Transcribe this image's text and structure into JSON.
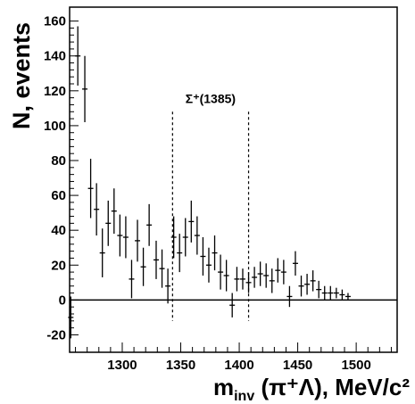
{
  "chart_data": {
    "type": "scatter",
    "title": "",
    "xlabel": {
      "main": "m",
      "sub": "inv",
      "tail": " (π⁺Λ), MeV/c²"
    },
    "ylabel": "N, events",
    "xlim": [
      1255,
      1535
    ],
    "ylim": [
      -30,
      168
    ],
    "x_ticks": [
      1300,
      1350,
      1400,
      1450,
      1500
    ],
    "y_ticks": [
      -20,
      0,
      20,
      40,
      60,
      80,
      100,
      120,
      140,
      160
    ],
    "zero_line": 0,
    "region_lines": [
      1343,
      1408
    ],
    "annotation": "Σ⁺(1385)",
    "points": [
      {
        "x": 1256,
        "y": -10,
        "err": 12
      },
      {
        "x": 1262,
        "y": 140,
        "err": 17
      },
      {
        "x": 1268,
        "y": 121,
        "err": 19
      },
      {
        "x": 1273,
        "y": 64,
        "err": 17
      },
      {
        "x": 1278,
        "y": 52,
        "err": 15
      },
      {
        "x": 1283,
        "y": 27,
        "err": 14
      },
      {
        "x": 1288,
        "y": 44,
        "err": 13
      },
      {
        "x": 1293,
        "y": 51,
        "err": 13
      },
      {
        "x": 1298,
        "y": 37,
        "err": 12
      },
      {
        "x": 1303,
        "y": 36,
        "err": 12
      },
      {
        "x": 1308,
        "y": 12,
        "err": 11
      },
      {
        "x": 1313,
        "y": 34,
        "err": 12
      },
      {
        "x": 1318,
        "y": 19,
        "err": 11
      },
      {
        "x": 1323,
        "y": 43,
        "err": 12
      },
      {
        "x": 1329,
        "y": 23,
        "err": 11
      },
      {
        "x": 1334,
        "y": 18,
        "err": 11
      },
      {
        "x": 1339,
        "y": 8,
        "err": 10
      },
      {
        "x": 1344,
        "y": 36,
        "err": 12
      },
      {
        "x": 1349,
        "y": 27,
        "err": 11
      },
      {
        "x": 1354,
        "y": 36,
        "err": 11
      },
      {
        "x": 1359,
        "y": 45,
        "err": 12
      },
      {
        "x": 1364,
        "y": 37,
        "err": 11
      },
      {
        "x": 1369,
        "y": 25,
        "err": 11
      },
      {
        "x": 1374,
        "y": 20,
        "err": 10
      },
      {
        "x": 1379,
        "y": 27,
        "err": 10
      },
      {
        "x": 1384,
        "y": 16,
        "err": 10
      },
      {
        "x": 1389,
        "y": 14,
        "err": 9
      },
      {
        "x": 1394,
        "y": -3,
        "err": 7
      },
      {
        "x": 1398,
        "y": 12,
        "err": 7
      },
      {
        "x": 1403,
        "y": 12,
        "err": 6
      },
      {
        "x": 1408,
        "y": 10,
        "err": 6
      },
      {
        "x": 1413,
        "y": 13,
        "err": 6
      },
      {
        "x": 1418,
        "y": 15,
        "err": 7
      },
      {
        "x": 1423,
        "y": 14,
        "err": 7
      },
      {
        "x": 1428,
        "y": 11,
        "err": 7
      },
      {
        "x": 1433,
        "y": 17,
        "err": 7
      },
      {
        "x": 1438,
        "y": 16,
        "err": 7
      },
      {
        "x": 1443,
        "y": 2,
        "err": 6
      },
      {
        "x": 1448,
        "y": 21,
        "err": 7
      },
      {
        "x": 1453,
        "y": 8,
        "err": 6
      },
      {
        "x": 1458,
        "y": 9,
        "err": 6
      },
      {
        "x": 1463,
        "y": 11,
        "err": 6
      },
      {
        "x": 1468,
        "y": 6,
        "err": 5
      },
      {
        "x": 1473,
        "y": 4,
        "err": 4
      },
      {
        "x": 1478,
        "y": 4,
        "err": 4
      },
      {
        "x": 1483,
        "y": 4,
        "err": 3
      },
      {
        "x": 1488,
        "y": 3,
        "err": 3
      },
      {
        "x": 1493,
        "y": 2,
        "err": 2
      }
    ]
  }
}
